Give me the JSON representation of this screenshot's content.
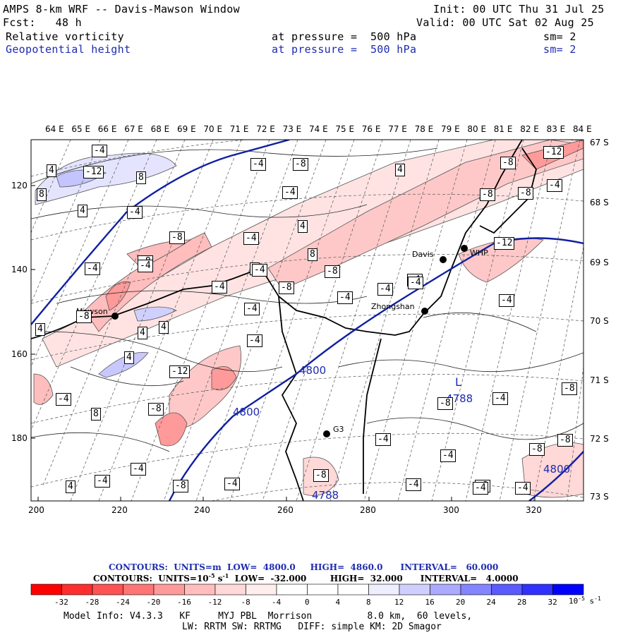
{
  "header": {
    "title": "AMPS 8-km WRF -- Davis-Mawson Window",
    "init": "Init: 00 UTC Thu 31 Jul 25",
    "fcst": "Fcst:   48 h",
    "valid": "Valid: 00 UTC Sat 02 Aug 25",
    "field1": {
      "name": "Relative vorticity",
      "level": "at pressure =  500 hPa",
      "sm": "sm= 2"
    },
    "field2": {
      "name": "Geopotential height",
      "level": "at pressure =  500 hPa",
      "sm": "sm= 2"
    }
  },
  "axes": {
    "lon_labels": [
      "64 E",
      "65 E",
      "66 E",
      "67 E",
      "68 E",
      "69 E",
      "70 E",
      "71 E",
      "72 E",
      "73 E",
      "74 E",
      "75 E",
      "76 E",
      "77 E",
      "78 E",
      "79 E",
      "80 E",
      "81 E",
      "82 E",
      "83 E",
      "84 E"
    ],
    "lat_labels": [
      "67 S",
      "68 S",
      "69 S",
      "70 S",
      "71 S",
      "72 S",
      "73 S"
    ],
    "x_ticks": [
      "200",
      "220",
      "240",
      "260",
      "280",
      "300",
      "320"
    ],
    "y_ticks": [
      "120",
      "140",
      "160",
      "180"
    ]
  },
  "stations": [
    {
      "name": "Mawson"
    },
    {
      "name": "Davis"
    },
    {
      "name": "WHP"
    },
    {
      "name": "Zhongshan"
    },
    {
      "name": "G3"
    }
  ],
  "height_labels": [
    "4800",
    "4800",
    "4800",
    "4788",
    "4788"
  ],
  "low_label": "L",
  "vort_labels": [
    "-4",
    "4",
    "-12",
    "8",
    "8",
    "4",
    "-4",
    "8",
    "-8",
    "-12",
    "-4",
    "-8",
    "4",
    "8",
    "-4",
    "-4",
    "4",
    "-4",
    "4",
    "4",
    "4",
    "-8",
    "8",
    "-8",
    "-4",
    "-4",
    "-8",
    "-4",
    "-8",
    "-4",
    "-8",
    "4",
    "-8",
    "-8",
    "-4",
    "-4",
    "-4",
    "-4",
    "-12",
    "-8",
    "-4",
    "-8",
    "-8",
    "-4",
    "-4",
    "-4",
    "-8",
    "-4",
    "-4",
    "-12",
    "-4",
    "-8",
    "-4",
    "-4",
    "-8",
    "-8",
    "-8",
    "-4",
    "-4",
    "-4",
    "4",
    "-4",
    "-4"
  ],
  "colorbar": {
    "contours_line1": "CONTOURS:  UNITS=m  LOW=  4800.0     HIGH=  4860.0      INTERVAL=   60.000",
    "contours_line2": "CONTOURS:  UNITS=10",
    "contours_line2_exp": "-5",
    "contours_line2_b": " s",
    "contours_line2_exp2": "-1",
    "contours_line2_c": "  LOW=  -32.000        HIGH=  32.000      INTERVAL=   4.0000",
    "ticks": [
      "-32",
      "-28",
      "-24",
      "-20",
      "-16",
      "-12",
      "-8",
      "-4",
      "0",
      "4",
      "8",
      "12",
      "16",
      "20",
      "24",
      "28",
      "32"
    ],
    "unit": "10",
    "unit_exp": "-5",
    "unit_b": " s",
    "unit_exp2": "-1",
    "colors": [
      "#ff0000",
      "#ff2e2e",
      "#ff5252",
      "#ff7575",
      "#ff9a9a",
      "#ffbdbd",
      "#ffd8d8",
      "#ffeeee",
      "#ffffff",
      "#ffffff",
      "#eeeeff",
      "#cfcfff",
      "#aaaaff",
      "#8484ff",
      "#5a5aff",
      "#3030ff",
      "#0000ff"
    ]
  },
  "model_info": {
    "line1": "Model Info: V4.3.3   KF     MYJ PBL  Morrison          8.0 km,  60 levels,",
    "line2": "LW: RRTM SW: RRTMG   DIFF: simple KM: 2D Smagor"
  }
}
